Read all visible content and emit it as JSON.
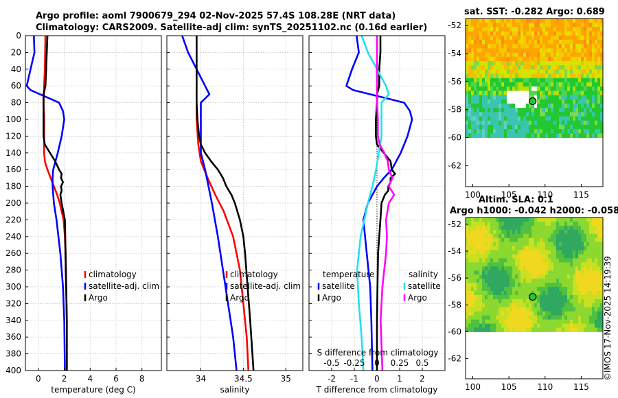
{
  "titles": {
    "line1": "Argo profile: aoml 7900679_294 02-Nov-2025 57.4S 108.28E (NRT data)",
    "line2": "Climatology: CARS2009. Satellite-adj clim: synTS_20251102.nc (0.16d earlier)",
    "sst": "sat. SST: -0.282 Argo: 0.689",
    "sla1": "Altim. SLA: 0.1",
    "sla2": "Argo h1000: -0.042 h2000: -0.058"
  },
  "stamp": "©IMOS 17-Nov-2025 14:19:39",
  "colors": {
    "climatology": "#ff0000",
    "satellite": "#0000ff",
    "argo": "#000000",
    "sat_salinity": "#22e0f0",
    "argo_salinity": "#ff00ff"
  },
  "chart_data": [
    {
      "type": "line",
      "title": "",
      "xlabel": "temperature (deg C)",
      "ylabel": "",
      "xlim": [
        -1,
        9.5
      ],
      "ylim": [
        0,
        400
      ],
      "y_reversed": true,
      "x_ticks": [
        "0",
        "2",
        "4",
        "6",
        "8"
      ],
      "x_tick_values": [
        0,
        2,
        4,
        6,
        8
      ],
      "y_ticks": [
        "0",
        "20",
        "40",
        "60",
        "80",
        "100",
        "120",
        "140",
        "160",
        "180",
        "200",
        "220",
        "240",
        "260",
        "280",
        "300",
        "320",
        "340",
        "360",
        "380",
        "400"
      ],
      "y_tick_values": [
        0,
        20,
        40,
        60,
        80,
        100,
        120,
        140,
        160,
        180,
        200,
        220,
        240,
        260,
        280,
        300,
        320,
        340,
        360,
        380,
        400
      ],
      "legend": {
        "position": "right",
        "labels": [
          "climatology",
          "satellite-adj. clim",
          "Argo"
        ]
      },
      "series": [
        {
          "name": "climatology",
          "color": "#ff0000",
          "depth": [
            0,
            40,
            60,
            80,
            100,
            120,
            140,
            150,
            160,
            170,
            180,
            190,
            200,
            220,
            240,
            260,
            300,
            340,
            400
          ],
          "values": [
            0.55,
            0.5,
            0.45,
            0.4,
            0.45,
            0.45,
            0.45,
            0.5,
            0.7,
            0.95,
            1.2,
            1.45,
            1.65,
            1.95,
            2.05,
            2.1,
            2.15,
            2.2,
            2.2
          ]
        },
        {
          "name": "satellite-adj. clim",
          "color": "#0000ff",
          "depth": [
            0,
            20,
            40,
            60,
            65,
            80,
            90,
            100,
            120,
            140,
            160,
            170,
            180,
            200,
            220,
            260,
            300,
            340,
            400
          ],
          "values": [
            -0.35,
            -0.3,
            -0.6,
            -0.9,
            -0.6,
            1.6,
            1.9,
            2.0,
            1.8,
            1.5,
            1.15,
            1.1,
            1.1,
            1.2,
            1.4,
            1.7,
            1.9,
            2.0,
            2.05
          ]
        },
        {
          "name": "Argo",
          "color": "#000000",
          "depth": [
            0,
            20,
            40,
            60,
            70,
            80,
            100,
            120,
            130,
            140,
            150,
            160,
            165,
            170,
            175,
            180,
            185,
            190,
            200,
            220,
            260,
            300,
            340,
            400
          ],
          "values": [
            0.7,
            0.65,
            0.6,
            0.55,
            0.4,
            0.4,
            0.4,
            0.4,
            0.5,
            0.9,
            1.3,
            1.6,
            1.8,
            1.75,
            1.9,
            1.75,
            1.8,
            1.7,
            1.8,
            2.05,
            2.1,
            2.15,
            2.2,
            2.2
          ]
        }
      ]
    },
    {
      "type": "line",
      "title": "",
      "xlabel": "salinity",
      "ylabel": "",
      "xlim": [
        33.6,
        35.2
      ],
      "ylim": [
        0,
        400
      ],
      "y_reversed": true,
      "x_ticks": [
        "34",
        "34.5",
        "35"
      ],
      "x_tick_values": [
        34,
        34.5,
        35
      ],
      "legend": {
        "position": "right",
        "labels": [
          "climatology",
          "satellite-adj. clim",
          "Argo"
        ]
      },
      "series": [
        {
          "name": "climatology",
          "color": "#ff0000",
          "depth": [
            0,
            20,
            60,
            100,
            130,
            150,
            170,
            190,
            210,
            240,
            280,
            320,
            360,
            400
          ],
          "values": [
            33.95,
            33.95,
            33.95,
            33.95,
            33.97,
            34.0,
            34.08,
            34.17,
            34.27,
            34.38,
            34.46,
            34.5,
            34.54,
            34.56
          ]
        },
        {
          "name": "satellite-adj. clim",
          "color": "#0000ff",
          "depth": [
            0,
            20,
            40,
            60,
            70,
            75,
            80,
            90,
            100,
            120,
            140,
            160,
            200,
            240,
            280,
            320,
            360,
            400
          ],
          "values": [
            33.78,
            33.85,
            33.95,
            34.05,
            34.1,
            34.05,
            34.0,
            34.0,
            34.0,
            34.0,
            34.0,
            34.05,
            34.13,
            34.2,
            34.26,
            34.32,
            34.38,
            34.42
          ]
        },
        {
          "name": "Argo",
          "color": "#000000",
          "depth": [
            0,
            20,
            40,
            60,
            80,
            100,
            120,
            130,
            140,
            150,
            160,
            170,
            180,
            190,
            200,
            220,
            240,
            260,
            300,
            340,
            400
          ],
          "values": [
            33.95,
            33.95,
            33.95,
            33.95,
            33.95,
            33.96,
            33.98,
            34.0,
            34.05,
            34.12,
            34.2,
            34.26,
            34.3,
            34.36,
            34.4,
            34.46,
            34.5,
            34.52,
            34.55,
            34.58,
            34.62
          ]
        }
      ]
    },
    {
      "type": "line",
      "title": "",
      "xlabel": "T difference from climatology",
      "x2label": "S difference from climatology",
      "ylabel": "",
      "xlim": [
        -3,
        3
      ],
      "ylim": [
        0,
        400
      ],
      "y_reversed": true,
      "x_ticks": [
        "-2",
        "-1",
        "0",
        "1",
        "2"
      ],
      "x_tick_values": [
        -2,
        -1,
        0,
        1,
        2
      ],
      "x2_ticks": [
        "-0.5",
        "-0.25",
        "0",
        "0.25",
        "0.5"
      ],
      "x2_tick_values": [
        -0.5,
        -0.25,
        0,
        0.25,
        0.5
      ],
      "legend": {
        "position": "right",
        "temperature_title": "temperature",
        "salinity_title": "salinity",
        "labels": [
          "satellite",
          "Argo",
          "satellite",
          "Argo"
        ]
      },
      "series": [
        {
          "name": "temperature satellite",
          "color": "#0000ff",
          "units": "T",
          "depth": [
            0,
            20,
            40,
            60,
            65,
            80,
            90,
            100,
            120,
            140,
            160,
            170,
            180,
            200,
            220,
            260,
            300,
            340,
            400
          ],
          "values": [
            -0.9,
            -0.8,
            -1.1,
            -1.35,
            -1.05,
            1.2,
            1.45,
            1.55,
            1.35,
            1.05,
            0.65,
            0.3,
            0.0,
            -0.4,
            -0.6,
            -0.45,
            -0.3,
            -0.25,
            -0.2
          ]
        },
        {
          "name": "temperature Argo",
          "color": "#000000",
          "units": "T",
          "depth": [
            0,
            20,
            40,
            60,
            70,
            80,
            100,
            120,
            130,
            140,
            150,
            160,
            165,
            170,
            175,
            180,
            185,
            190,
            200,
            220,
            260,
            300,
            340,
            400
          ],
          "values": [
            0.15,
            0.15,
            0.1,
            0.1,
            0.0,
            0.0,
            -0.05,
            -0.05,
            0.0,
            0.3,
            0.6,
            0.65,
            0.8,
            0.6,
            0.6,
            0.5,
            0.5,
            0.35,
            0.2,
            0.15,
            0.05,
            0.02,
            0.0,
            0.0
          ]
        },
        {
          "name": "salinity satellite",
          "color": "#22e0f0",
          "units": "S",
          "depth": [
            0,
            20,
            40,
            60,
            70,
            80,
            100,
            120,
            140,
            160,
            180,
            200,
            240,
            280,
            320,
            360,
            400
          ],
          "values": [
            -0.17,
            -0.1,
            0.0,
            0.1,
            0.13,
            0.05,
            0.05,
            0.05,
            0.02,
            -0.01,
            -0.05,
            -0.1,
            -0.18,
            -0.22,
            -0.2,
            -0.17,
            -0.15
          ]
        },
        {
          "name": "salinity Argo",
          "color": "#ff00ff",
          "units": "S",
          "depth": [
            0,
            20,
            40,
            60,
            80,
            100,
            120,
            130,
            140,
            150,
            160,
            170,
            180,
            190,
            200,
            220,
            240,
            260,
            300,
            340,
            400
          ],
          "values": [
            0.0,
            0.0,
            0.0,
            0.0,
            0.0,
            0.01,
            0.01,
            0.03,
            0.08,
            0.12,
            0.13,
            0.17,
            0.13,
            0.19,
            0.13,
            0.1,
            0.11,
            0.1,
            0.06,
            0.04,
            0.06
          ]
        }
      ]
    },
    {
      "type": "heatmap",
      "title": "sat. SST: -0.282 Argo: 0.689",
      "xlim": [
        99,
        118
      ],
      "ylim": [
        -63.5,
        -51.5
      ],
      "x_ticks": [
        "100",
        "105",
        "110",
        "115"
      ],
      "x_tick_values": [
        100,
        105,
        110,
        115
      ],
      "y_ticks": [
        "-52",
        "-54",
        "-56",
        "-58",
        "-60",
        "-62"
      ],
      "y_tick_values": [
        -52,
        -54,
        -56,
        -58,
        -60,
        -62
      ],
      "data_extent_lat": [
        -60,
        -51.5
      ],
      "marker": {
        "lon": 108.28,
        "lat": -57.4
      }
    },
    {
      "type": "heatmap",
      "title": "Altim. SLA: 0.1",
      "xlim": [
        99,
        118
      ],
      "ylim": [
        -63.5,
        -51.5
      ],
      "x_ticks": [
        "100",
        "105",
        "110",
        "115"
      ],
      "x_tick_values": [
        100,
        105,
        110,
        115
      ],
      "y_ticks": [
        "-52",
        "-54",
        "-56",
        "-58",
        "-60",
        "-62"
      ],
      "y_tick_values": [
        -52,
        -54,
        -56,
        -58,
        -60,
        -62
      ],
      "data_extent_lat": [
        -60,
        -51.5
      ],
      "marker": {
        "lon": 108.28,
        "lat": -57.4
      }
    }
  ]
}
